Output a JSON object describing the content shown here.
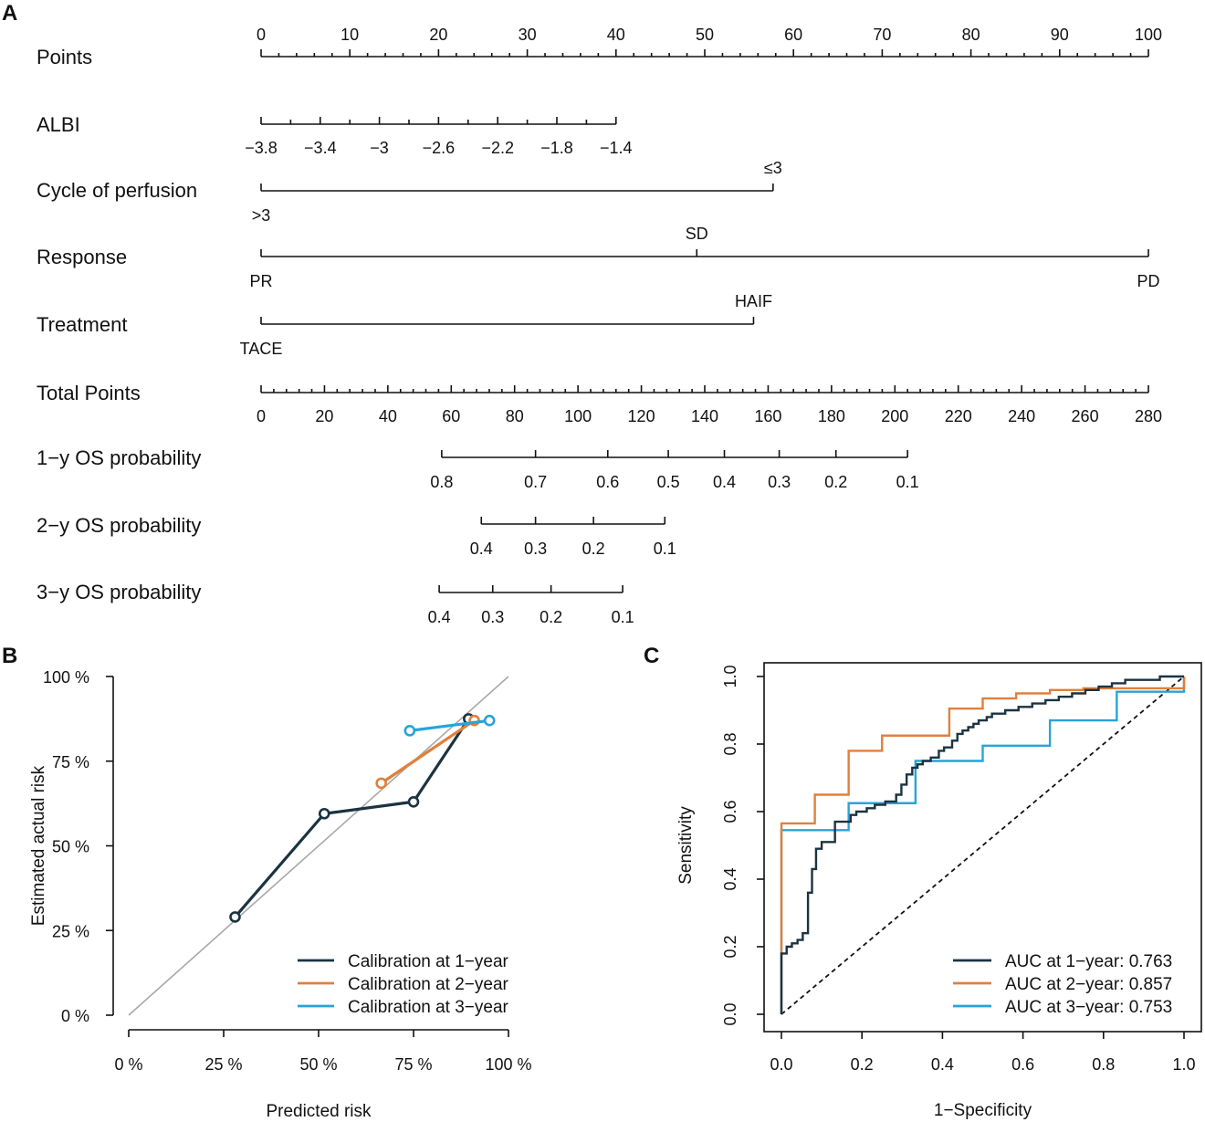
{
  "panel_labels": {
    "a": "A",
    "b": "B",
    "c": "C"
  },
  "colors": {
    "year1": "#1b3340",
    "year2": "#e0803a",
    "year3": "#27a4d9",
    "ref": "#a8a8a8",
    "axis": "#111111"
  },
  "chart_data": [
    {
      "type": "nomogram",
      "panel": "A",
      "scales": [
        {
          "key": "points",
          "name": "Points",
          "from_points": 0,
          "to_points": 100,
          "major_labels": [
            "0",
            "10",
            "20",
            "30",
            "40",
            "50",
            "60",
            "70",
            "80",
            "90",
            "100"
          ],
          "minor_step_points": 2
        },
        {
          "key": "albi",
          "name": "ALBI",
          "from_points": 0,
          "to_points": 40,
          "ticks": [
            {
              "label": "−3.8",
              "points": 0
            },
            {
              "label": "−3.4",
              "points": 6.67
            },
            {
              "label": "−3",
              "points": 13.33
            },
            {
              "label": "−2.6",
              "points": 20
            },
            {
              "label": "−2.2",
              "points": 26.67
            },
            {
              "label": "−1.8",
              "points": 33.33
            },
            {
              "label": "−1.4",
              "points": 40
            }
          ]
        },
        {
          "key": "cycle",
          "name": "Cycle of perfusion",
          "from_points": 0,
          "to_points": 57.7,
          "ticks": [
            {
              "label": ">3",
              "points": 0,
              "side": "below"
            },
            {
              "label": "≤3",
              "points": 57.7,
              "side": "above"
            }
          ]
        },
        {
          "key": "response",
          "name": "Response",
          "from_points": 0,
          "to_points": 100,
          "ticks": [
            {
              "label": "PR",
              "points": 0,
              "side": "below"
            },
            {
              "label": "SD",
              "points": 49.1,
              "side": "above"
            },
            {
              "label": "PD",
              "points": 100,
              "side": "below"
            }
          ]
        },
        {
          "key": "treatment",
          "name": "Treatment",
          "from_points": 0,
          "to_points": 55.5,
          "ticks": [
            {
              "label": "TACE",
              "points": 0,
              "side": "below"
            },
            {
              "label": "HAIF",
              "points": 55.5,
              "side": "above"
            }
          ]
        },
        {
          "key": "total",
          "name": "Total Points",
          "from_total": 0,
          "to_total": 280,
          "major_labels": [
            "0",
            "20",
            "40",
            "60",
            "80",
            "100",
            "120",
            "140",
            "160",
            "180",
            "200",
            "220",
            "240",
            "260",
            "280"
          ],
          "minor_step_total": 4
        },
        {
          "key": "os1",
          "name": "1−y OS probability",
          "ticks": [
            {
              "label": "0.8",
              "total": 57
            },
            {
              "label": "0.7",
              "total": 86.6
            },
            {
              "label": "0.6",
              "total": 109.4
            },
            {
              "label": "0.5",
              "total": 128.5
            },
            {
              "label": "0.4",
              "total": 146.2
            },
            {
              "label": "0.3",
              "total": 163.5
            },
            {
              "label": "0.2",
              "total": 181.4
            },
            {
              "label": "0.1",
              "total": 204
            }
          ]
        },
        {
          "key": "os2",
          "name": "2−y OS probability",
          "ticks": [
            {
              "label": "0.4",
              "total": 69.5
            },
            {
              "label": "0.3",
              "total": 86.6
            },
            {
              "label": "0.2",
              "total": 104.9
            },
            {
              "label": "0.1",
              "total": 127.4
            }
          ]
        },
        {
          "key": "os3",
          "name": "3−y OS probability",
          "ticks": [
            {
              "label": "0.4",
              "total": 56.2
            },
            {
              "label": "0.3",
              "total": 73.1
            },
            {
              "label": "0.2",
              "total": 91.5
            },
            {
              "label": "0.1",
              "total": 114.1
            }
          ]
        }
      ]
    },
    {
      "type": "line",
      "panel": "B",
      "xlabel": "Predicted risk",
      "ylabel": "Estimated actual risk",
      "xlim": [
        0,
        100
      ],
      "ylim": [
        0,
        100
      ],
      "xticks": [
        0,
        25,
        50,
        75,
        100
      ],
      "yticks": [
        0,
        25,
        50,
        75,
        100
      ],
      "tick_suffix": " %",
      "reference_line": [
        [
          0,
          0
        ],
        [
          100,
          100
        ]
      ],
      "legend": "bottom-right",
      "series": [
        {
          "name": "Calibration at 1−year",
          "color_key": "year1",
          "x": [
            28,
            51.5,
            75,
            89.5
          ],
          "y": [
            29,
            59.5,
            63,
            87.5
          ]
        },
        {
          "name": "Calibration at 2−year",
          "color_key": "year2",
          "x": [
            66.5,
            91
          ],
          "y": [
            68.5,
            87
          ]
        },
        {
          "name": "Calibration at 3−year",
          "color_key": "year3",
          "x": [
            74,
            95
          ],
          "y": [
            84,
            87
          ]
        }
      ]
    },
    {
      "type": "line",
      "step": true,
      "panel": "C",
      "xlabel": "1−Specificity",
      "ylabel": "Sensitivity",
      "xlim": [
        0,
        1
      ],
      "ylim": [
        0,
        1
      ],
      "xticks": [
        "0.0",
        "0.2",
        "0.4",
        "0.6",
        "0.8",
        "1.0"
      ],
      "yticks": [
        "0.0",
        "0.2",
        "0.4",
        "0.6",
        "0.8",
        "1.0"
      ],
      "diagonal": true,
      "legend": "bottom-right",
      "series": [
        {
          "name": "AUC at 1−year: 0.763",
          "color_key": "year1",
          "x": [
            0,
            0,
            0.013,
            0.013,
            0.026,
            0.026,
            0.04,
            0.04,
            0.053,
            0.053,
            0.066,
            0.066,
            0.076,
            0.076,
            0.086,
            0.086,
            0.1,
            0.1,
            0.133,
            0.133,
            0.172,
            0.172,
            0.186,
            0.186,
            0.212,
            0.212,
            0.232,
            0.232,
            0.258,
            0.258,
            0.285,
            0.285,
            0.298,
            0.298,
            0.311,
            0.311,
            0.325,
            0.325,
            0.338,
            0.338,
            0.351,
            0.351,
            0.371,
            0.371,
            0.391,
            0.391,
            0.404,
            0.404,
            0.424,
            0.424,
            0.437,
            0.437,
            0.45,
            0.45,
            0.464,
            0.464,
            0.477,
            0.477,
            0.49,
            0.49,
            0.51,
            0.51,
            0.523,
            0.523,
            0.556,
            0.556,
            0.589,
            0.589,
            0.623,
            0.623,
            0.656,
            0.656,
            0.689,
            0.689,
            0.722,
            0.722,
            0.755,
            0.755,
            0.788,
            0.788,
            0.821,
            0.821,
            0.854,
            0.854,
            0.887,
            0.887,
            0.94,
            0.94,
            0.98,
            0.98,
            1.0
          ],
          "y": [
            0,
            0.18,
            0.18,
            0.2,
            0.2,
            0.21,
            0.21,
            0.22,
            0.22,
            0.24,
            0.24,
            0.36,
            0.36,
            0.43,
            0.43,
            0.49,
            0.49,
            0.51,
            0.51,
            0.57,
            0.57,
            0.59,
            0.59,
            0.6,
            0.6,
            0.61,
            0.61,
            0.62,
            0.62,
            0.63,
            0.63,
            0.65,
            0.65,
            0.68,
            0.68,
            0.71,
            0.71,
            0.73,
            0.73,
            0.74,
            0.74,
            0.75,
            0.75,
            0.76,
            0.76,
            0.78,
            0.78,
            0.79,
            0.79,
            0.81,
            0.81,
            0.83,
            0.83,
            0.84,
            0.84,
            0.85,
            0.85,
            0.86,
            0.86,
            0.87,
            0.87,
            0.88,
            0.88,
            0.89,
            0.89,
            0.9,
            0.9,
            0.91,
            0.91,
            0.92,
            0.92,
            0.93,
            0.93,
            0.94,
            0.94,
            0.95,
            0.95,
            0.96,
            0.96,
            0.97,
            0.97,
            0.98,
            0.98,
            0.99,
            0.99,
            0.99,
            0.99,
            1.0,
            1.0,
            1.0,
            1.0
          ]
        },
        {
          "name": "AUC at 2−year: 0.857",
          "color_key": "year2",
          "x": [
            0,
            0,
            0.083,
            0.083,
            0.167,
            0.167,
            0.25,
            0.25,
            0.417,
            0.417,
            0.5,
            0.5,
            0.583,
            0.583,
            0.667,
            0.667,
            0.75,
            0.75,
            0.833,
            0.833,
            1.0,
            1.0
          ],
          "y": [
            0,
            0.565,
            0.565,
            0.65,
            0.65,
            0.78,
            0.78,
            0.825,
            0.825,
            0.905,
            0.905,
            0.935,
            0.935,
            0.95,
            0.95,
            0.96,
            0.96,
            0.965,
            0.965,
            0.965,
            0.965,
            1.0
          ]
        },
        {
          "name": "AUC at 3−year: 0.753",
          "color_key": "year3",
          "x": [
            0,
            0,
            0.167,
            0.167,
            0.333,
            0.333,
            0.5,
            0.5,
            0.667,
            0.667,
            0.833,
            0.833,
            1.0,
            1.0
          ],
          "y": [
            0,
            0.545,
            0.545,
            0.625,
            0.625,
            0.75,
            0.75,
            0.795,
            0.795,
            0.87,
            0.87,
            0.955,
            0.955,
            1.0
          ]
        }
      ]
    }
  ]
}
